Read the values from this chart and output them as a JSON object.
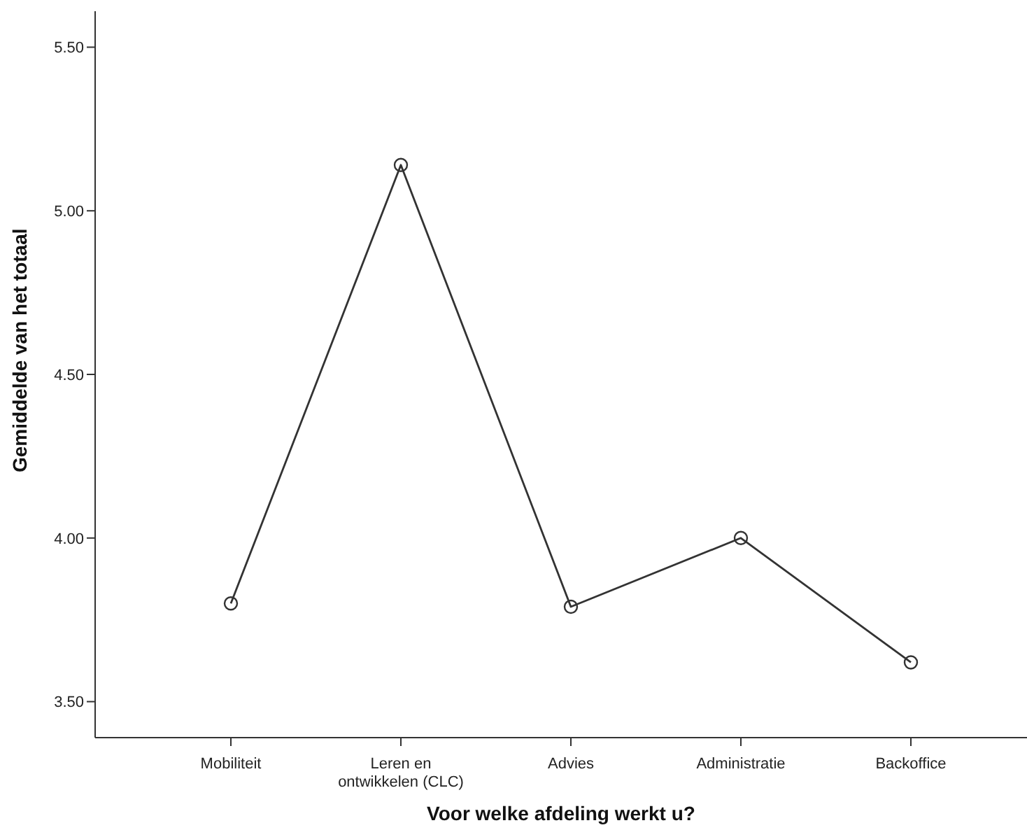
{
  "chart_data": {
    "type": "line",
    "xlabel": "Voor welke afdeling werkt u?",
    "ylabel": "Gemiddelde van het totaal",
    "categories": [
      "Mobiliteit",
      "Leren en ontwikkelen (CLC)",
      "Advies",
      "Administratie",
      "Backoffice"
    ],
    "series": [
      {
        "color": "#333333",
        "values": [
          3.8,
          5.14,
          3.79,
          4.0,
          3.62
        ]
      }
    ],
    "ylim": [
      3.39,
      5.61
    ],
    "yticks": [
      {
        "value": 3.5,
        "label": "3.50"
      },
      {
        "value": 4,
        "label": "4.00"
      },
      {
        "value": 4.5,
        "label": "4.50"
      },
      {
        "value": 5,
        "label": "5.00"
      },
      {
        "value": 5.5,
        "label": "5.50"
      }
    ],
    "grid": false,
    "legend": false,
    "marker": "circle",
    "line_style": "solid"
  }
}
